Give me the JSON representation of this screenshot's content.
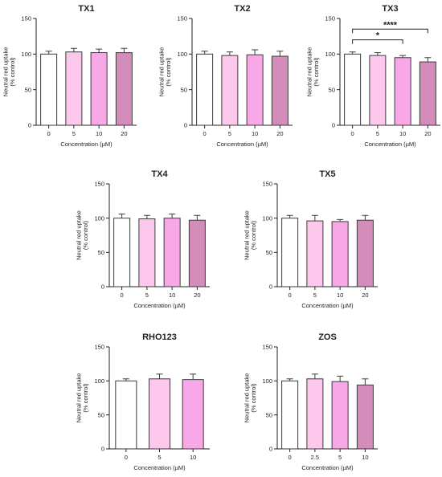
{
  "colors": {
    "c0": "#ffffff",
    "c1": "#fcc9ec",
    "c2": "#f8a8e6",
    "c3": "#d48cbb",
    "stroke": "#3a3a3a"
  },
  "chart_data": [
    {
      "type": "bar",
      "title": "TX1",
      "xlabel": "Concentration (µM)",
      "ylabel": [
        "Neutral red uptake",
        "(% control)"
      ],
      "categories": [
        "0",
        "5",
        "10",
        "20"
      ],
      "values": [
        100,
        103,
        102,
        102
      ],
      "errors": [
        4,
        5,
        5,
        6
      ],
      "ylim": [
        0,
        150
      ],
      "yticks": [
        0,
        50,
        100,
        150
      ],
      "significance": []
    },
    {
      "type": "bar",
      "title": "TX2",
      "xlabel": "Concentration (µM)",
      "ylabel": [
        "Neutral red uptake",
        "(% control)"
      ],
      "categories": [
        "0",
        "5",
        "10",
        "20"
      ],
      "values": [
        100,
        98,
        99,
        97
      ],
      "errors": [
        4,
        5,
        7,
        7
      ],
      "ylim": [
        0,
        150
      ],
      "yticks": [
        0,
        50,
        100,
        150
      ],
      "significance": []
    },
    {
      "type": "bar",
      "title": "TX3",
      "xlabel": "Concentration (µM)",
      "ylabel": [
        "Neutral red uptake",
        "(% control)"
      ],
      "categories": [
        "0",
        "5",
        "10",
        "20"
      ],
      "values": [
        100,
        98,
        95,
        89
      ],
      "errors": [
        3,
        4,
        3,
        6
      ],
      "ylim": [
        0,
        150
      ],
      "yticks": [
        0,
        50,
        100,
        150
      ],
      "significance": [
        {
          "from": 0,
          "to": 2,
          "label": "*"
        },
        {
          "from": 0,
          "to": 3,
          "label": "****"
        }
      ]
    },
    {
      "type": "bar",
      "title": "TX4",
      "xlabel": "Concentration (µM)",
      "ylabel": [
        "Neutral red uptake",
        "(% control)"
      ],
      "categories": [
        "0",
        "5",
        "10",
        "20"
      ],
      "values": [
        100,
        99,
        100,
        97
      ],
      "errors": [
        6,
        5,
        6,
        7
      ],
      "ylim": [
        0,
        150
      ],
      "yticks": [
        0,
        50,
        100,
        150
      ],
      "significance": []
    },
    {
      "type": "bar",
      "title": "TX5",
      "xlabel": "Concentration (µM)",
      "ylabel": [
        "Neutral red uptake",
        "(% control)"
      ],
      "categories": [
        "0",
        "5",
        "10",
        "20"
      ],
      "values": [
        100,
        96,
        95,
        97
      ],
      "errors": [
        4,
        8,
        3,
        7
      ],
      "ylim": [
        0,
        150
      ],
      "yticks": [
        0,
        50,
        100,
        150
      ],
      "significance": []
    },
    {
      "type": "bar",
      "title": "RHO123",
      "xlabel": "Concentration (µM)",
      "ylabel": [
        "Neutral red uptake",
        "(% control)"
      ],
      "categories": [
        "0",
        "5",
        "10"
      ],
      "values": [
        100,
        103,
        102
      ],
      "errors": [
        3,
        7,
        8
      ],
      "ylim": [
        0,
        150
      ],
      "yticks": [
        0,
        50,
        100,
        150
      ],
      "significance": []
    },
    {
      "type": "bar",
      "title": "ZOS",
      "xlabel": "Concentration (µM)",
      "ylabel": [
        "Neutral red uptake",
        "(% control)"
      ],
      "categories": [
        "0",
        "2.5",
        "5",
        "10"
      ],
      "values": [
        100,
        103,
        99,
        94
      ],
      "errors": [
        3,
        7,
        8,
        9
      ],
      "ylim": [
        0,
        150
      ],
      "yticks": [
        0,
        50,
        100,
        150
      ],
      "significance": []
    }
  ]
}
